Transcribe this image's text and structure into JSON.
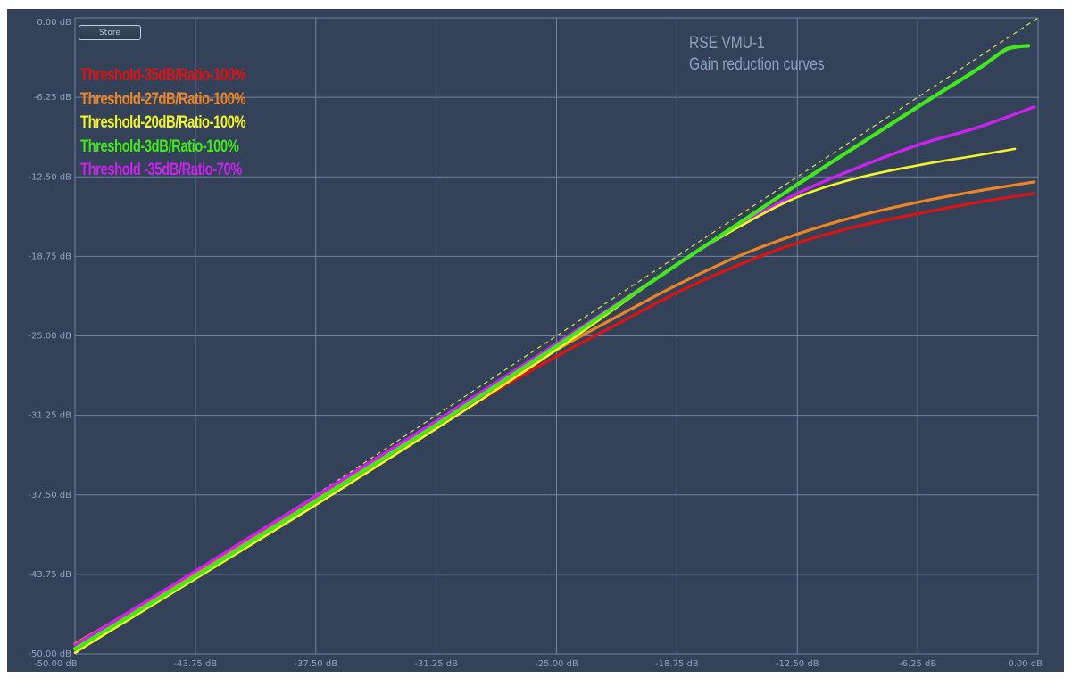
{
  "store_button": {
    "label": "Store"
  },
  "chart_data": {
    "type": "line",
    "title": "RSE VMU-1",
    "subtitle": "Gain reduction curves",
    "xlabel": "",
    "ylabel": "",
    "xlim": [
      -50,
      0
    ],
    "ylim": [
      -50,
      0
    ],
    "x_ticks": [
      "-50.00 dB",
      "-43.75 dB",
      "-37.50 dB",
      "-31.25 dB",
      "-25.00 dB",
      "-18.75 dB",
      "-12.50 dB",
      "-6.25 dB",
      "0.00 dB"
    ],
    "y_ticks": [
      "0.00 dB",
      "-6.25 dB",
      "-12.50 dB",
      "-18.75 dB",
      "-25.00 dB",
      "-31.25 dB",
      "-37.50 dB",
      "-43.75 dB",
      "-50.00 dB"
    ],
    "grid": true,
    "legend_position": "top-left",
    "background_color": "#334259",
    "grid_color": "#6d82a0",
    "tick_color": "#8ea2bd",
    "reference_line": {
      "style": "dashed",
      "color": "#d8e24a",
      "x": [
        -50,
        0
      ],
      "y": [
        -50,
        0
      ]
    },
    "series": [
      {
        "name": "Threshold-35dB/Ratio-100%",
        "color": "#e01313",
        "x": [
          -50,
          -43.75,
          -37.5,
          -31.25,
          -28,
          -25,
          -22,
          -18.75,
          -15.5,
          -12.5,
          -9.4,
          -6.25,
          -3.1,
          -0.2
        ],
        "y": [
          -49.5,
          -43.9,
          -38.0,
          -32.2,
          -29.2,
          -26.6,
          -24.2,
          -21.6,
          -19.4,
          -17.7,
          -16.4,
          -15.4,
          -14.5,
          -13.8
        ]
      },
      {
        "name": "Threshold-27dB/Ratio-100%",
        "color": "#f08424",
        "x": [
          -50,
          -43.75,
          -37.5,
          -31.25,
          -28,
          -25,
          -22,
          -18.75,
          -15.5,
          -12.5,
          -9.4,
          -6.25,
          -3.1,
          -0.2
        ],
        "y": [
          -49.2,
          -43.7,
          -37.9,
          -31.9,
          -28.9,
          -26.1,
          -23.6,
          -21.0,
          -18.7,
          -17.0,
          -15.6,
          -14.5,
          -13.6,
          -12.9
        ]
      },
      {
        "name": "Threshold-20dB/Ratio-100%",
        "color": "#f4f42c",
        "x": [
          -50,
          -43.75,
          -37.5,
          -31.25,
          -25,
          -18.75,
          -15.6,
          -12.5,
          -9.4,
          -6.25,
          -3.1,
          -1.2
        ],
        "y": [
          -49.9,
          -44.1,
          -38.3,
          -32.3,
          -26.1,
          -19.4,
          -16.5,
          -14.1,
          -12.6,
          -11.6,
          -10.8,
          -10.3
        ]
      },
      {
        "name": "Threshold-3dB/Ratio-100%",
        "color": "#43e81a",
        "x": [
          -50,
          -43.75,
          -37.5,
          -31.25,
          -25,
          -18.75,
          -12.5,
          -6.25,
          -3.1,
          -1.8,
          -1.2,
          -0.5
        ],
        "y": [
          -49.6,
          -43.9,
          -38.0,
          -32.0,
          -25.8,
          -19.4,
          -13.1,
          -7.0,
          -4.0,
          -2.6,
          -2.3,
          -2.2
        ]
      },
      {
        "name": "Threshold -35dB/Ratio-70%",
        "color": "#cc22f0",
        "x": [
          -50,
          -43.75,
          -37.5,
          -31.25,
          -25,
          -18.75,
          -15.6,
          -12.5,
          -9.4,
          -6.25,
          -3.1,
          -0.2
        ],
        "y": [
          -49.3,
          -43.5,
          -37.6,
          -31.7,
          -25.6,
          -19.4,
          -16.4,
          -13.8,
          -11.8,
          -10.0,
          -8.6,
          -7.0
        ]
      }
    ]
  }
}
